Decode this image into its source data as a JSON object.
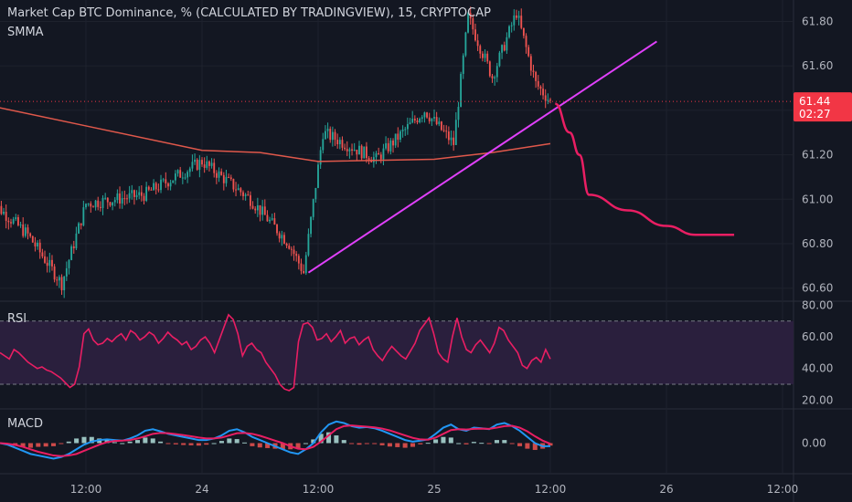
{
  "header": {
    "title": "Market Cap BTC Dominance, % (CALCULATED BY TRADINGVIEW), 15, CRYPTOCAP",
    "indicator": "SMMA"
  },
  "colors": {
    "background": "#131722",
    "up": "#26a69a",
    "down": "#ef5350",
    "smma": "#e0584b",
    "trendline": "#e040fb",
    "projection": "#e91e63",
    "rsi_line": "#e91e63",
    "rsi_band": "#2a1f3d",
    "macd_line": "#2196f3",
    "signal_line": "#e91e63",
    "price_badge": "#f23645"
  },
  "price_badge": {
    "price": "61.44",
    "countdown": "02:27"
  },
  "chart_data": [
    {
      "type": "candlestick",
      "series_name": "Market Cap BTC Dominance, %",
      "interval": "15",
      "y_ticks": [
        "61.80",
        "61.60",
        "61.40",
        "61.20",
        "61.00",
        "60.80",
        "60.60"
      ],
      "ylim": [
        60.57,
        61.88
      ],
      "x_ticks": [
        "12:00",
        "24",
        "12:00",
        "25",
        "12:00",
        "26",
        "12:00"
      ],
      "last_price": 61.44,
      "key_points": [
        {
          "t": "23 02:00",
          "v": 61.0
        },
        {
          "t": "23 06:00",
          "v": 60.84
        },
        {
          "t": "23 09:30",
          "v": 60.62
        },
        {
          "t": "23 12:00",
          "v": 60.98
        },
        {
          "t": "23 18:00",
          "v": 61.02
        },
        {
          "t": "24 00:00",
          "v": 61.17
        },
        {
          "t": "24 05:00",
          "v": 61.0
        },
        {
          "t": "24 09:00",
          "v": 60.8
        },
        {
          "t": "24 10:30",
          "v": 60.67
        },
        {
          "t": "24 12:30",
          "v": 61.3
        },
        {
          "t": "24 18:00",
          "v": 61.18
        },
        {
          "t": "24 23:00",
          "v": 61.4
        },
        {
          "t": "25 02:00",
          "v": 61.25
        },
        {
          "t": "25 03:30",
          "v": 61.82
        },
        {
          "t": "25 06:00",
          "v": 61.55
        },
        {
          "t": "25 08:30",
          "v": 61.84
        },
        {
          "t": "25 10:30",
          "v": 61.52
        },
        {
          "t": "25 12:00",
          "v": 61.44
        }
      ],
      "smma": [
        {
          "t": "23 00:00",
          "v": 61.44
        },
        {
          "t": "23 12:00",
          "v": 61.33
        },
        {
          "t": "24 00:00",
          "v": 61.22
        },
        {
          "t": "24 06:00",
          "v": 61.21
        },
        {
          "t": "24 12:00",
          "v": 61.17
        },
        {
          "t": "25 00:00",
          "v": 61.18
        },
        {
          "t": "25 06:00",
          "v": 61.21
        },
        {
          "t": "25 12:00",
          "v": 61.25
        }
      ],
      "trendline": [
        {
          "t": "24 11:00",
          "v": 60.67
        },
        {
          "t": "25 23:00",
          "v": 61.71
        }
      ],
      "projection": [
        {
          "t": "25 12:30",
          "v": 61.43
        },
        {
          "t": "25 14:00",
          "v": 61.3
        },
        {
          "t": "25 15:00",
          "v": 61.2
        },
        {
          "t": "25 16:00",
          "v": 61.02
        },
        {
          "t": "25 20:00",
          "v": 60.95
        },
        {
          "t": "26 00:00",
          "v": 60.88
        },
        {
          "t": "26 03:00",
          "v": 60.84
        },
        {
          "t": "26 07:00",
          "v": 60.84
        }
      ]
    },
    {
      "type": "line",
      "name": "RSI",
      "y_ticks": [
        "80.00",
        "60.00",
        "40.00",
        "20.00"
      ],
      "ylim": [
        15,
        82
      ],
      "bands": [
        30,
        70
      ],
      "values": [
        50,
        48,
        46,
        52,
        50,
        47,
        44,
        42,
        40,
        41,
        39,
        38,
        36,
        34,
        31,
        28,
        30,
        41,
        62,
        65,
        58,
        55,
        56,
        59,
        57,
        60,
        62,
        58,
        64,
        62,
        58,
        60,
        63,
        61,
        56,
        59,
        63,
        60,
        58,
        55,
        57,
        52,
        54,
        58,
        60,
        56,
        50,
        58,
        66,
        74,
        71,
        62,
        48,
        54,
        56,
        52,
        50,
        44,
        40,
        36,
        30,
        27,
        26,
        28,
        57,
        68,
        69,
        66,
        58,
        59,
        62,
        57,
        60,
        64,
        56,
        59,
        60,
        55,
        58,
        60,
        52,
        48,
        45,
        50,
        54,
        51,
        48,
        46,
        51,
        56,
        64,
        68,
        72,
        62,
        50,
        46,
        44,
        60,
        72,
        60,
        52,
        50,
        55,
        58,
        54,
        50,
        56,
        66,
        64,
        58,
        54,
        50,
        42,
        40,
        45,
        47,
        44,
        52,
        46
      ]
    },
    {
      "type": "line",
      "name": "MACD",
      "y_ticks": [
        "0.00"
      ],
      "ylim": [
        -0.09,
        0.09
      ],
      "macd": [
        0.0,
        -0.005,
        -0.015,
        -0.025,
        -0.035,
        -0.04,
        -0.045,
        -0.05,
        -0.045,
        -0.035,
        -0.02,
        -0.005,
        0.005,
        0.01,
        0.012,
        0.01,
        0.008,
        0.015,
        0.025,
        0.04,
        0.045,
        0.038,
        0.03,
        0.025,
        0.02,
        0.015,
        0.01,
        0.01,
        0.015,
        0.025,
        0.04,
        0.045,
        0.035,
        0.02,
        0.01,
        0.0,
        -0.01,
        -0.02,
        -0.03,
        -0.035,
        -0.02,
        0.0,
        0.035,
        0.06,
        0.07,
        0.065,
        0.055,
        0.05,
        0.052,
        0.048,
        0.04,
        0.03,
        0.02,
        0.01,
        0.005,
        0.008,
        0.012,
        0.03,
        0.05,
        0.06,
        0.045,
        0.04,
        0.05,
        0.048,
        0.045,
        0.06,
        0.065,
        0.055,
        0.04,
        0.02,
        0.0,
        -0.01,
        -0.01
      ],
      "signal": [
        0.0,
        -0.002,
        -0.006,
        -0.012,
        -0.02,
        -0.028,
        -0.034,
        -0.04,
        -0.042,
        -0.04,
        -0.035,
        -0.025,
        -0.015,
        -0.005,
        0.003,
        0.007,
        0.008,
        0.01,
        0.015,
        0.022,
        0.03,
        0.033,
        0.032,
        0.029,
        0.026,
        0.022,
        0.018,
        0.015,
        0.015,
        0.018,
        0.025,
        0.032,
        0.033,
        0.03,
        0.024,
        0.016,
        0.008,
        0.0,
        -0.01,
        -0.018,
        -0.02,
        -0.012,
        0.005,
        0.025,
        0.045,
        0.055,
        0.057,
        0.055,
        0.053,
        0.051,
        0.047,
        0.041,
        0.033,
        0.025,
        0.017,
        0.012,
        0.011,
        0.018,
        0.03,
        0.042,
        0.045,
        0.044,
        0.046,
        0.047,
        0.046,
        0.05,
        0.055,
        0.056,
        0.05,
        0.038,
        0.022,
        0.008,
        -0.002
      ]
    }
  ]
}
